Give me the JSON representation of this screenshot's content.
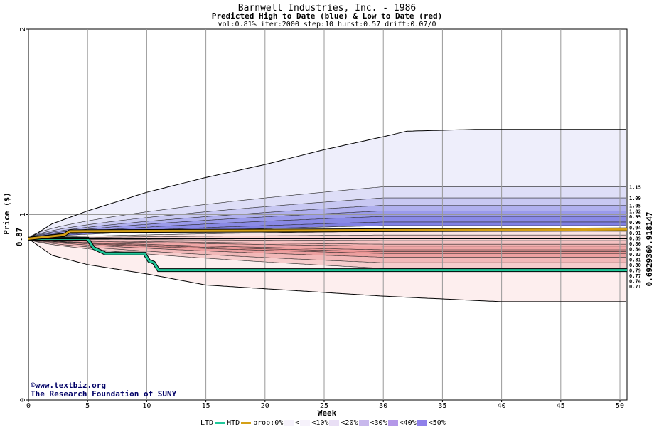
{
  "chart_data": {
    "type": "area",
    "title": "Barnwell Industries, Inc. - 1986",
    "subtitle": "Predicted High to Date (blue) &  Low to Date (red)",
    "params": "vol:0.81% iter:2000 step:10 hurst:0.57 drift:0.07/0",
    "xlabel": "Week",
    "ylabel": "Price ($)",
    "xlim": [
      0,
      50.6
    ],
    "ylim": [
      0,
      2
    ],
    "x_ticks": [
      0,
      5,
      10,
      15,
      20,
      25,
      30,
      35,
      40,
      45,
      50
    ],
    "y_ticks": [
      0,
      1,
      2
    ],
    "grid": true,
    "start_price": "0.87",
    "right_value_gold": "0.918147",
    "right_value_green": "0.692936",
    "colors": {
      "gold": "#d4a017",
      "green": "#20c89a",
      "green_text": "#009966",
      "gold_text": "#aa7700",
      "grid": "#999999"
    },
    "band_levels_blue": [
      "1.15",
      "1.09",
      "1.05",
      "1.02",
      "0.99",
      "0.96",
      "0.94"
    ],
    "band_levels_red": [
      "0.91",
      "0.89",
      "0.86",
      "0.84",
      "0.83",
      "0.81",
      "0.80",
      "0.79",
      "0.77",
      "0.74",
      "0.71"
    ],
    "envelope": {
      "upper": [
        [
          0,
          0.87
        ],
        [
          2,
          0.95
        ],
        [
          5,
          1.02
        ],
        [
          10,
          1.12
        ],
        [
          15,
          1.2
        ],
        [
          20,
          1.27
        ],
        [
          25,
          1.35
        ],
        [
          30,
          1.42
        ],
        [
          32,
          1.45
        ],
        [
          38,
          1.46
        ],
        [
          50.6,
          1.46
        ]
      ],
      "lower": [
        [
          0,
          0.87
        ],
        [
          2,
          0.78
        ],
        [
          5,
          0.73
        ],
        [
          10,
          0.68
        ],
        [
          15,
          0.62
        ],
        [
          20,
          0.6
        ],
        [
          25,
          0.58
        ],
        [
          30,
          0.56
        ],
        [
          40,
          0.53
        ],
        [
          50.6,
          0.53
        ]
      ]
    },
    "series": [
      {
        "name": "LTD",
        "values": [
          [
            0,
            0.87
          ],
          [
            5,
            0.87
          ],
          [
            5.5,
            0.82
          ],
          [
            6.5,
            0.79
          ],
          [
            9.8,
            0.79
          ],
          [
            10.2,
            0.75
          ],
          [
            10.6,
            0.74
          ],
          [
            11,
            0.7
          ],
          [
            50.6,
            0.7
          ]
        ]
      },
      {
        "name": "HTD",
        "values": [
          [
            0,
            0.87
          ],
          [
            50.6,
            0.87
          ]
        ]
      },
      {
        "name": "prob:0%",
        "values": [
          [
            0,
            0.87
          ],
          [
            3,
            0.89
          ],
          [
            3.5,
            0.91
          ],
          [
            50.6,
            0.92
          ]
        ]
      }
    ]
  },
  "credit": {
    "copyright_symbol": "©",
    "site": "www.textbiz.org",
    "org": "The Research Foundation of SUNY"
  },
  "legend": {
    "ltd": "LTD",
    "htd": "HTD",
    "prob": "prob:0%",
    "lt": "<",
    "items": [
      "<10%",
      "<20%",
      "<30%",
      "<40%",
      "<50%"
    ],
    "colors": [
      "#f6f2fb",
      "#e9dff5",
      "#c8b8ec",
      "#b498e8",
      "#8f80ea"
    ]
  }
}
